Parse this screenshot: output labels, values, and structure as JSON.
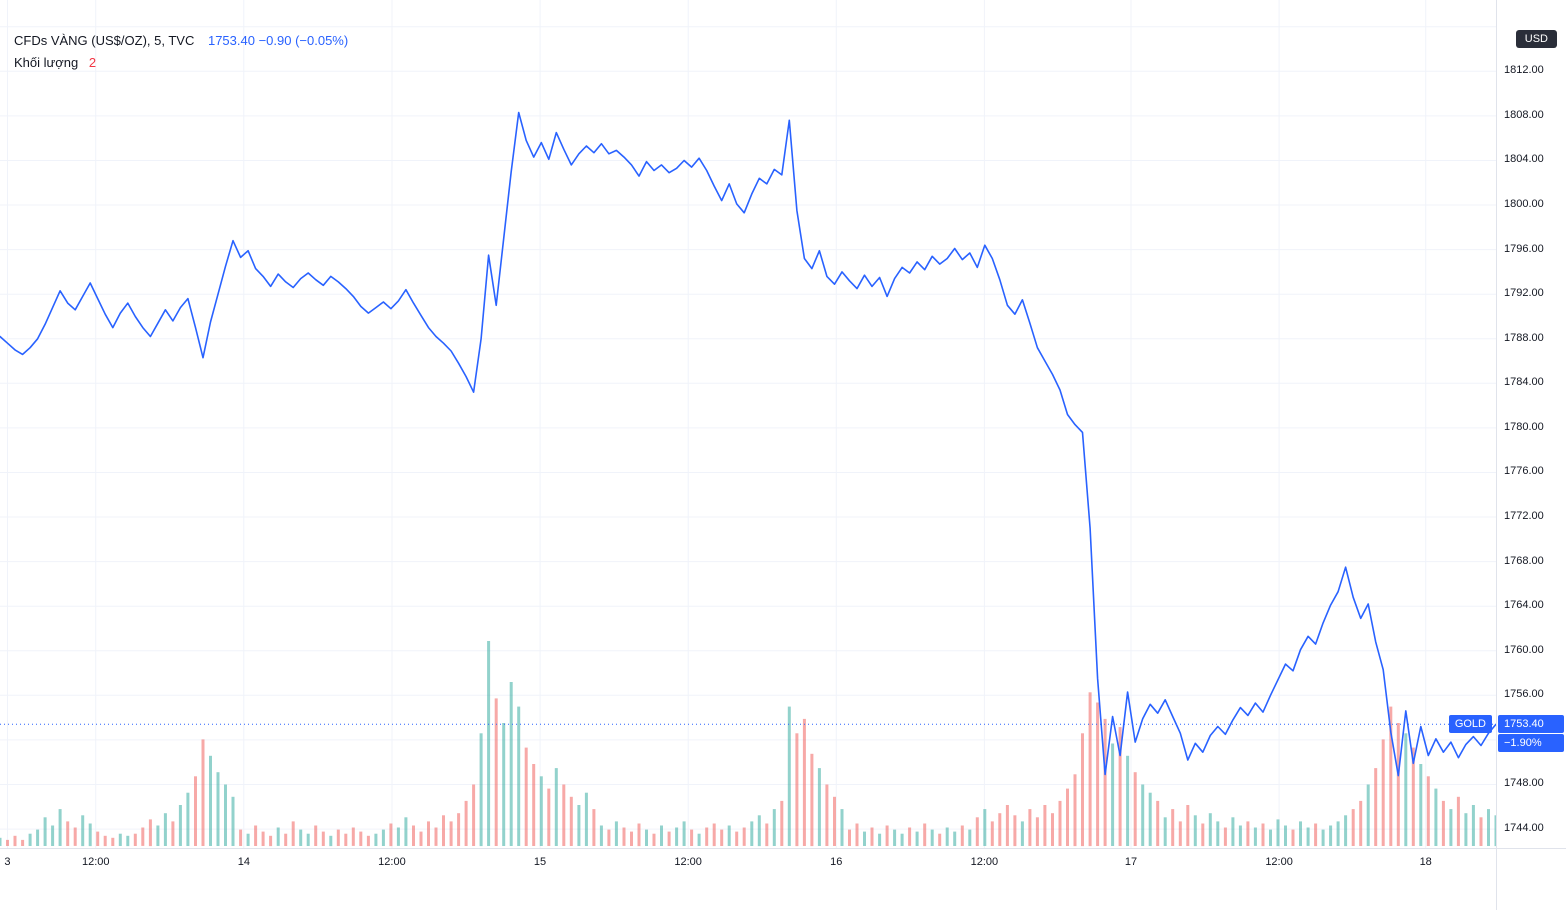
{
  "legend": {
    "symbol_title": "CFDs VÀNG (US$/OZ), 5, TVC",
    "quote": "1753.40 −0.90 (−0.05%)",
    "volume_label": "Khối lượng",
    "volume_value": "2"
  },
  "axis_overlays": {
    "currency": "USD",
    "symbol_tag": "GOLD",
    "last_price": "1753.40",
    "change_percent": "−1.90%"
  },
  "chart_data": {
    "type": "line",
    "title": "CFDs VÀNG (US$/OZ), 5, TVC",
    "symbol": "GOLD",
    "timeframe_minutes": 5,
    "last_price": 1753.4,
    "change": -0.9,
    "change_percent": -0.05,
    "session_change_percent": -1.9,
    "line_color": "#2962ff",
    "grid": true,
    "grid_color": "#f0f3fa",
    "volume_up_color": "rgba(38,166,154,0.5)",
    "volume_down_color": "rgba(239,83,80,0.5)",
    "current_price_line": 1753.4,
    "volume_scale_max": 100,
    "y_axis": {
      "range_top": 1818.4,
      "range_bottom": 1742.3,
      "grid_values": [
        1816,
        1812,
        1808,
        1804,
        1800,
        1796,
        1792,
        1788,
        1784,
        1780,
        1776,
        1772,
        1768,
        1764,
        1760,
        1756,
        1752,
        1748,
        1744
      ],
      "labels": [
        1812,
        1808,
        1804,
        1800,
        1796,
        1792,
        1788,
        1784,
        1780,
        1776,
        1772,
        1768,
        1764,
        1760,
        1756,
        1748,
        1744
      ]
    },
    "x_axis": {
      "ticks": [
        {
          "label": "3",
          "pos": 0.005
        },
        {
          "label": "12:00",
          "pos": 0.064
        },
        {
          "label": "14",
          "pos": 0.163
        },
        {
          "label": "12:00",
          "pos": 0.262
        },
        {
          "label": "15",
          "pos": 0.361
        },
        {
          "label": "12:00",
          "pos": 0.46
        },
        {
          "label": "16",
          "pos": 0.559
        },
        {
          "label": "12:00",
          "pos": 0.658
        },
        {
          "label": "17",
          "pos": 0.756
        },
        {
          "label": "12:00",
          "pos": 0.855
        },
        {
          "label": "18",
          "pos": 0.953
        }
      ]
    },
    "price_series": [
      1788.2,
      1787.6,
      1787.0,
      1786.6,
      1787.2,
      1788.0,
      1789.3,
      1790.8,
      1792.3,
      1791.2,
      1790.6,
      1791.8,
      1793.0,
      1791.6,
      1790.2,
      1789.0,
      1790.3,
      1791.2,
      1790.0,
      1789.0,
      1788.2,
      1789.4,
      1790.6,
      1789.6,
      1790.8,
      1791.6,
      1789.0,
      1786.3,
      1789.5,
      1792.0,
      1794.5,
      1796.8,
      1795.3,
      1795.9,
      1794.3,
      1793.6,
      1792.7,
      1793.8,
      1793.1,
      1792.6,
      1793.4,
      1793.9,
      1793.3,
      1792.8,
      1793.6,
      1793.1,
      1792.5,
      1791.8,
      1790.9,
      1790.3,
      1790.8,
      1791.3,
      1790.7,
      1791.4,
      1792.4,
      1791.2,
      1790.1,
      1789.0,
      1788.2,
      1787.6,
      1786.9,
      1785.8,
      1784.6,
      1783.2,
      1788.0,
      1795.5,
      1791.0,
      1797.0,
      1803.0,
      1808.3,
      1805.8,
      1804.3,
      1805.6,
      1804.1,
      1806.5,
      1805.0,
      1803.6,
      1804.6,
      1805.3,
      1804.7,
      1805.5,
      1804.6,
      1804.9,
      1804.3,
      1803.6,
      1802.6,
      1803.9,
      1803.1,
      1803.6,
      1802.9,
      1803.3,
      1804.0,
      1803.4,
      1804.2,
      1803.1,
      1801.7,
      1800.4,
      1801.9,
      1800.1,
      1799.3,
      1801.0,
      1802.4,
      1801.9,
      1803.2,
      1802.7,
      1807.6,
      1799.5,
      1795.2,
      1794.3,
      1795.9,
      1793.6,
      1792.9,
      1794.0,
      1793.2,
      1792.5,
      1793.7,
      1792.7,
      1793.5,
      1791.8,
      1793.4,
      1794.4,
      1793.9,
      1794.9,
      1794.2,
      1795.4,
      1794.7,
      1795.2,
      1796.1,
      1795.1,
      1795.7,
      1794.4,
      1796.4,
      1795.2,
      1793.3,
      1791.0,
      1790.2,
      1791.5,
      1789.4,
      1787.2,
      1786.0,
      1784.8,
      1783.4,
      1781.2,
      1780.3,
      1779.6,
      1771.0,
      1757.5,
      1748.9,
      1754.1,
      1750.6,
      1756.3,
      1751.8,
      1753.9,
      1755.2,
      1754.4,
      1755.6,
      1754.1,
      1752.6,
      1750.2,
      1751.7,
      1750.9,
      1752.4,
      1753.2,
      1752.5,
      1753.8,
      1754.9,
      1754.2,
      1755.3,
      1754.5,
      1756.0,
      1757.4,
      1758.8,
      1758.2,
      1760.1,
      1761.3,
      1760.6,
      1762.5,
      1764.1,
      1765.3,
      1767.5,
      1764.8,
      1762.9,
      1764.2,
      1760.8,
      1758.3,
      1752.7,
      1748.8,
      1754.6,
      1749.9,
      1753.2,
      1750.6,
      1752.1,
      1750.9,
      1751.8,
      1750.4,
      1751.6,
      1752.3,
      1751.5,
      1752.6,
      1753.4
    ],
    "volume_series": [
      4,
      3,
      5,
      3,
      6,
      8,
      14,
      10,
      18,
      12,
      9,
      15,
      11,
      7,
      5,
      4,
      6,
      5,
      6,
      9,
      13,
      10,
      16,
      12,
      20,
      26,
      34,
      52,
      44,
      36,
      30,
      24,
      8,
      6,
      10,
      7,
      5,
      9,
      6,
      12,
      8,
      6,
      10,
      7,
      5,
      8,
      6,
      9,
      7,
      5,
      6,
      8,
      11,
      9,
      14,
      10,
      7,
      12,
      9,
      15,
      12,
      16,
      22,
      30,
      55,
      100,
      72,
      60,
      80,
      68,
      48,
      40,
      34,
      28,
      38,
      30,
      24,
      20,
      26,
      18,
      10,
      8,
      12,
      9,
      7,
      11,
      8,
      6,
      10,
      7,
      9,
      12,
      8,
      6,
      9,
      11,
      8,
      10,
      7,
      9,
      12,
      15,
      11,
      18,
      22,
      68,
      55,
      62,
      45,
      38,
      30,
      24,
      18,
      8,
      11,
      7,
      9,
      6,
      10,
      8,
      6,
      9,
      7,
      11,
      8,
      6,
      9,
      7,
      10,
      8,
      14,
      18,
      12,
      16,
      20,
      15,
      12,
      18,
      14,
      20,
      16,
      22,
      28,
      35,
      55,
      75,
      70,
      62,
      50,
      58,
      44,
      36,
      30,
      26,
      22,
      14,
      18,
      12,
      20,
      15,
      11,
      16,
      12,
      9,
      14,
      10,
      12,
      9,
      11,
      8,
      13,
      10,
      8,
      12,
      9,
      11,
      8,
      10,
      12,
      15,
      18,
      22,
      30,
      38,
      52,
      68,
      60,
      55,
      48,
      40,
      34,
      28,
      22,
      18,
      24,
      16,
      20,
      14,
      18,
      15
    ]
  }
}
